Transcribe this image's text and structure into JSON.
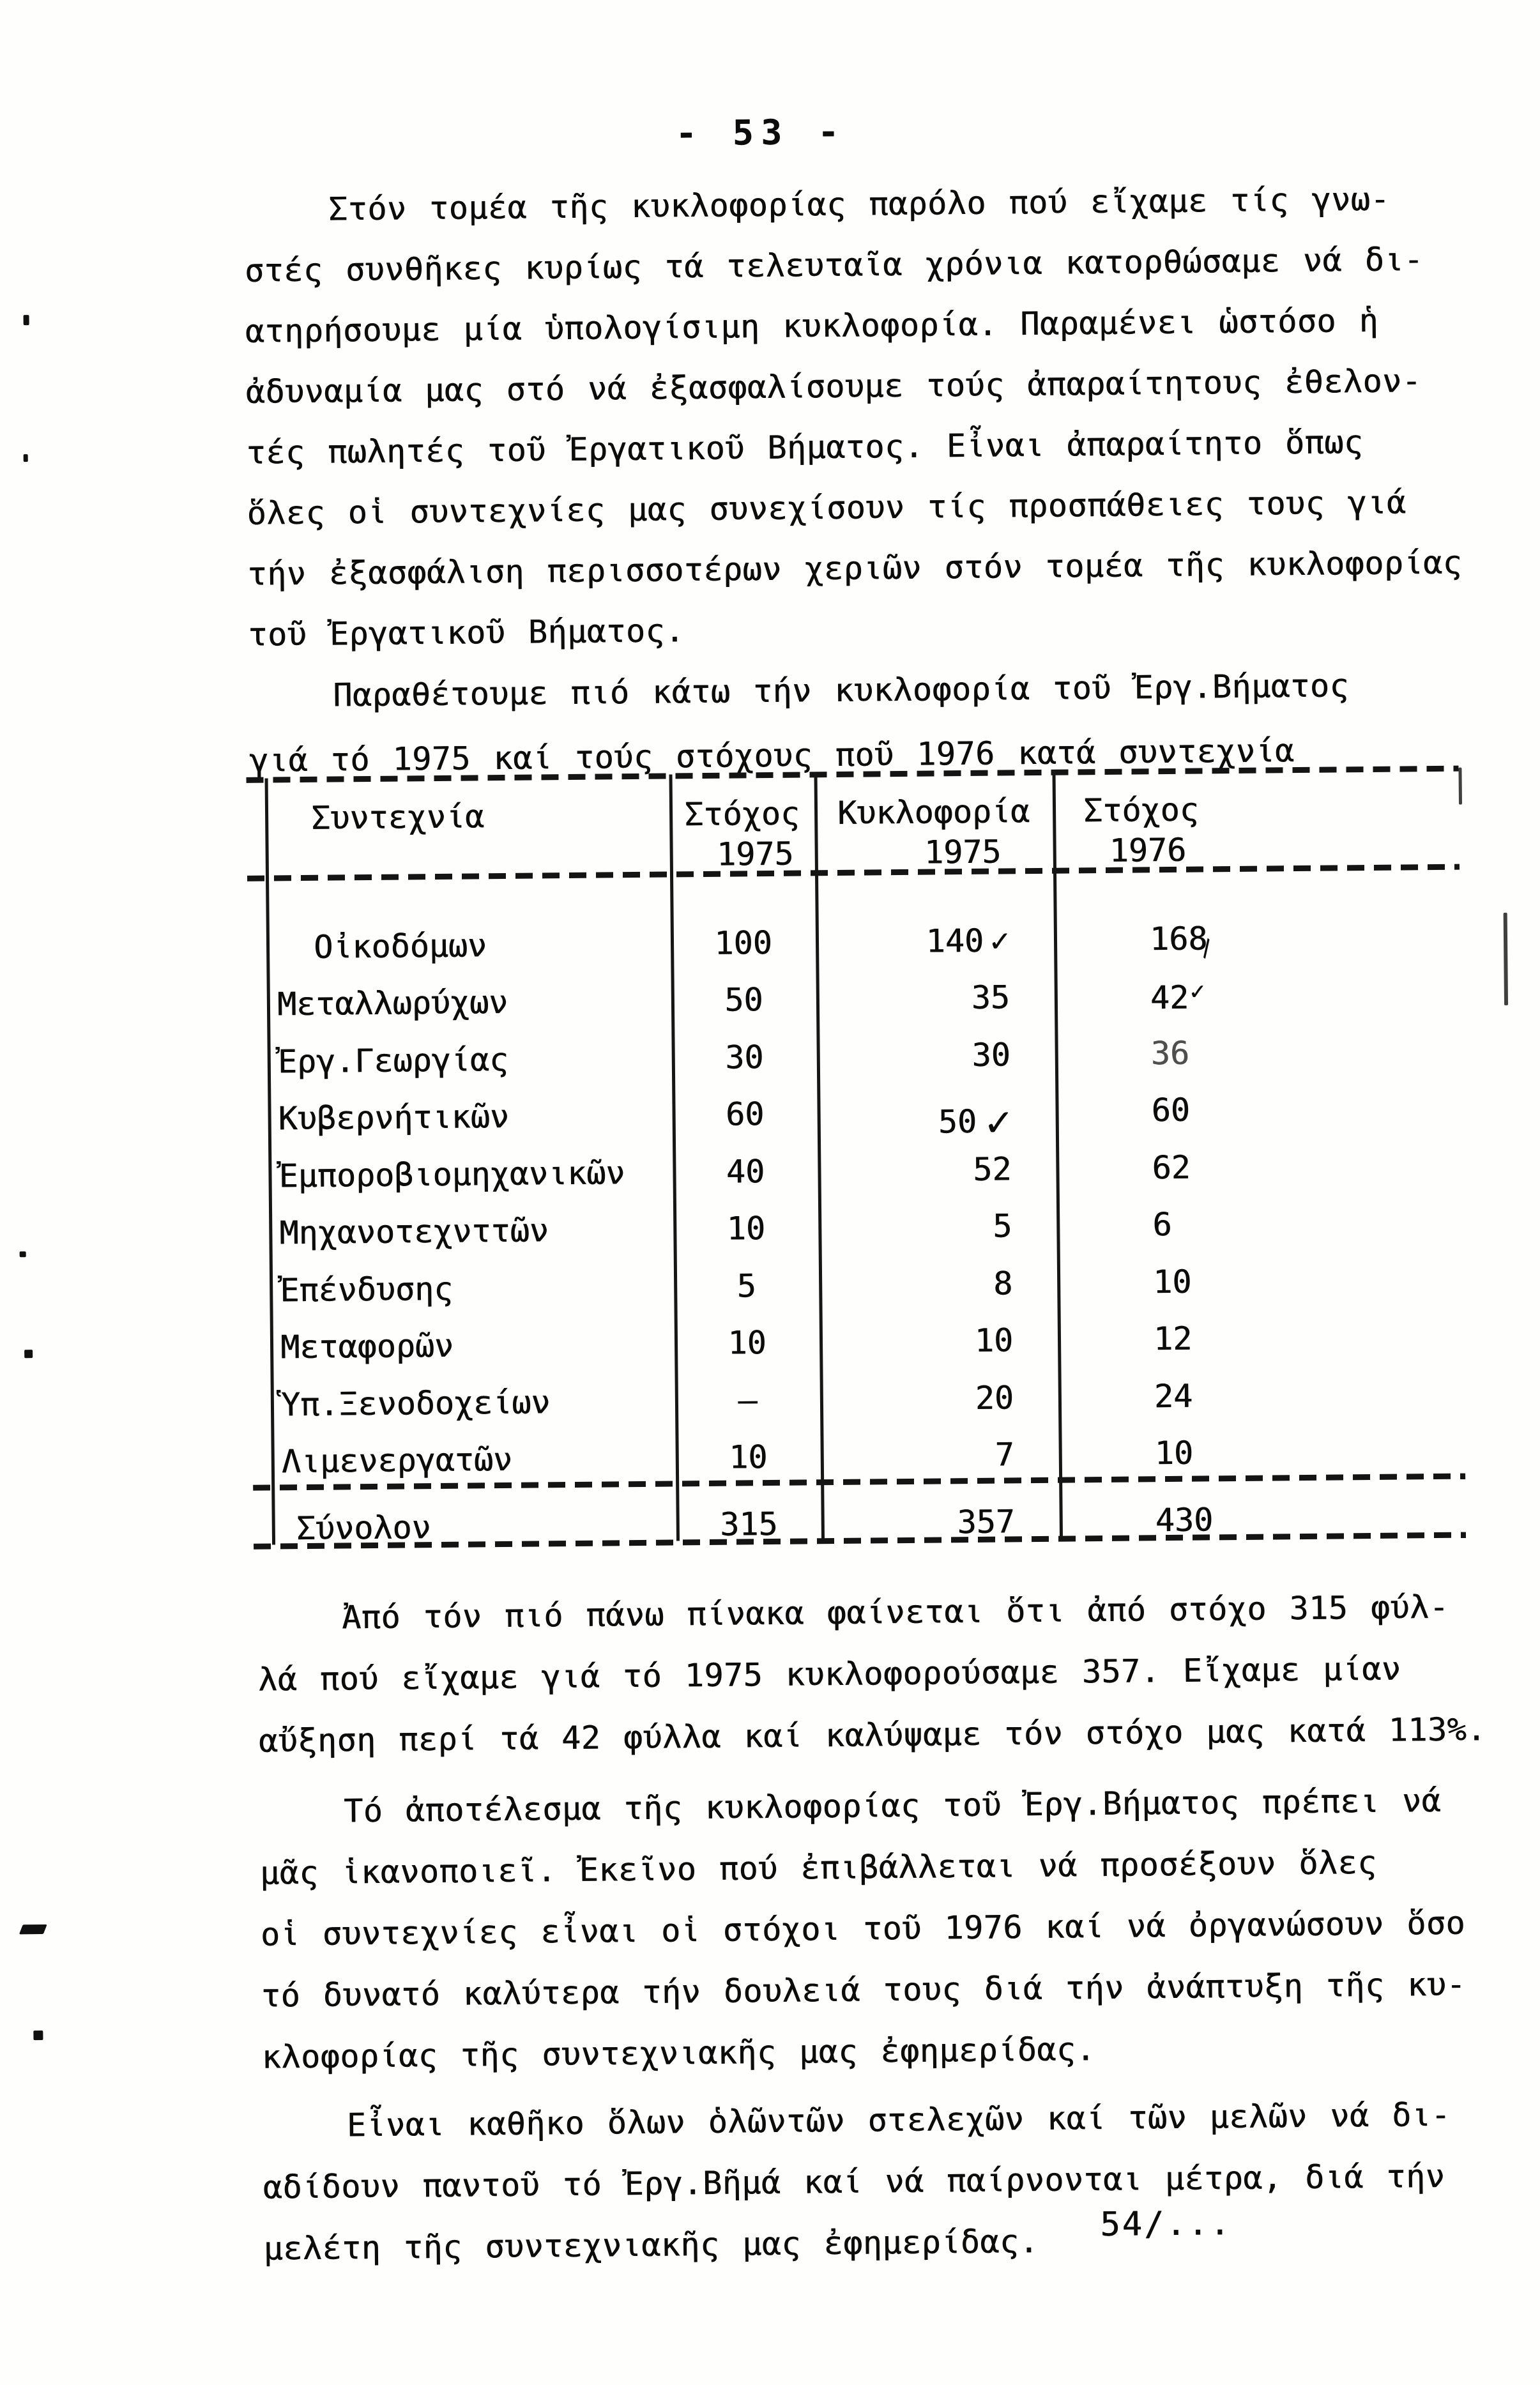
{
  "page": {
    "number": "- 53 -",
    "continuation": "54/..."
  },
  "paragraphs": {
    "p1": {
      "lines": [
        "Στόν τομέα τῆς κυκλοφορίας παρόλο πού εἴχαμε τίς γνω-",
        "στές συνθῆκες κυρίως τά τελευταῖα χρόνια κατορθώσαμε νά δι-",
        "ατηρήσουμε μία ὑπολογίσιμη κυκλοφορία. Παραμένει ὡστόσο ἡ",
        "ἀδυναμία μας στό νά ἐξασφαλίσουμε τούς ἀπαραίτητους ἐθελον-",
        "τές πωλητές τοῦ Ἐργατικοῦ Βήματος. Εἶναι ἀπαραίτητο ὅπως",
        "ὅλες οἱ συντεχνίες μας συνεχίσουν τίς προσπάθειες τους γιά",
        "τήν ἐξασφάλιση περισσοτέρων χεριῶν στόν τομέα τῆς κυκλοφορίας",
        "τοῦ Ἐργατικοῦ Βήματος."
      ]
    },
    "p2": {
      "lines": [
        "Παραθέτουμε πιό κάτω τήν κυκλοφορία τοῦ Ἐργ.Βήματος",
        "γιά τό 1975 καί τούς στόχους ποῦ 1976 κατά συντεχνία"
      ]
    },
    "p3": {
      "lines": [
        "Ἀπό τόν πιό πάνω πίνακα φαίνεται ὅτι ἀπό στόχο 315 φύλ-",
        "λά πού εἴχαμε γιά τό 1975 κυκλοφορούσαμε 357. Εἴχαμε μίαν",
        "αὔξηση περί τά 42 φύλλα καί καλύψαμε τόν στόχο μας κατά 113%."
      ]
    },
    "p4": {
      "lines": [
        "Τό ἀποτέλεσμα τῆς κυκλοφορίας τοῦ Ἐργ.Βήματος πρέπει νά",
        "μᾶς ἱκανοποιεῖ. Ἐκεῖνο πού ἐπιβάλλεται νά προσέξουν ὅλες",
        "οἱ συντεχνίες εἶναι οἱ στόχοι τοῦ 1976 καί νά ὀργανώσουν ὅσο",
        "τό δυνατό καλύτερα τήν δουλειά τους διά τήν ἀνάπτυξη τῆς κυ-",
        "κλοφορίας τῆς συντεχνιακῆς μας ἐφημερίδας."
      ]
    },
    "p5": {
      "lines": [
        "Εἶναι καθῆκο ὅλων ὁλῶντῶν στελεχῶν καί τῶν μελῶν νά δι-",
        "αδίδουν παντοῦ τό Ἐργ.Βῆμά καί νά παίρνονται μέτρα, διά τήν",
        "μελέτη τῆς συντεχνιακῆς μας ἐφημερίδας."
      ]
    }
  },
  "table": {
    "headers": {
      "guild": "Συντεχνία",
      "target75_label": "Στόχος",
      "target75_year": "1975",
      "circ_label": "Κυκλοφορία",
      "circ_year": "1975",
      "target76_label": "Στόχος",
      "target76_year": "1976"
    },
    "rows": [
      {
        "name": "Οἰκοδόμων",
        "t75": "100",
        "circ": "140",
        "m_circ": "✓",
        "t76": "168",
        "m76": "\\"
      },
      {
        "name": "Μεταλλωρύχων",
        "t75": "50",
        "circ": "35",
        "m_circ": "",
        "t76": "42",
        "m76": "✓"
      },
      {
        "name": "Ἐργ.Γεωργίας",
        "t75": "30",
        "circ": "30",
        "m_circ": "",
        "t76": "36",
        "m76": ""
      },
      {
        "name": "Κυβερνήτικῶν",
        "t75": "60",
        "circ": "50",
        "m_circ": "✓",
        "t76": "60",
        "m76": ""
      },
      {
        "name": "Ἐμποροβιομηχανικῶν",
        "t75": "40",
        "circ": "52",
        "m_circ": "",
        "t76": "62",
        "m76": ""
      },
      {
        "name": "Μηχανοτεχνττῶν",
        "t75": "10",
        "circ": "5",
        "m_circ": "",
        "t76": "6",
        "m76": ""
      },
      {
        "name": "Ἐπένδυσης",
        "t75": "5",
        "circ": "8",
        "m_circ": "",
        "t76": "10",
        "m76": ""
      },
      {
        "name": "Μεταφορῶν",
        "t75": "10",
        "circ": "10",
        "m_circ": "",
        "t76": "12",
        "m76": ""
      },
      {
        "name": "Ὑπ.Ξενοδοχείων",
        "t75": "–",
        "circ": "20",
        "m_circ": "",
        "t76": "24",
        "m76": ""
      },
      {
        "name": "Λιμενεργατῶν",
        "t75": "10",
        "circ": "7",
        "m_circ": "",
        "t76": "10",
        "m76": ""
      }
    ],
    "total": {
      "name": "Σύνολον",
      "t75": "315",
      "circ": "357",
      "t76": "430"
    }
  }
}
